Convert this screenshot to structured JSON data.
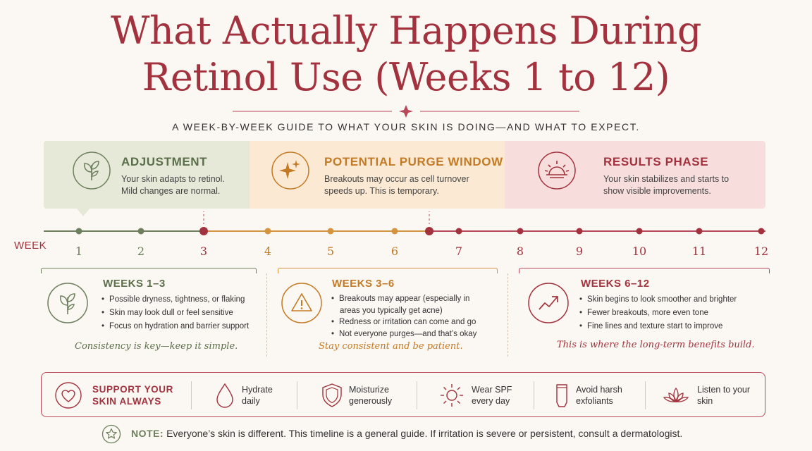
{
  "header": {
    "title_line1": "What Actually Happens During",
    "title_line2": "Retinol Use (Weeks 1 to 12)",
    "subtitle": "A WEEK-BY-WEEK GUIDE TO WHAT YOUR SKIN IS DOING—AND WHAT TO EXPECT."
  },
  "colors": {
    "accent": "#a2323d",
    "green": "#5b6e4a",
    "orange": "#c47a24",
    "rose": "#a2323d",
    "background": "#fbf7f2"
  },
  "phases": [
    {
      "title": "ADJUSTMENT",
      "description": "Your skin adapts to retinol. Mild changes are normal.",
      "icon": "sprout-icon"
    },
    {
      "title": "POTENTIAL PURGE WINDOW",
      "description": "Breakouts may occur as cell turnover speeds up. This is temporary.",
      "icon": "sparkle-icon"
    },
    {
      "title": "RESULTS PHASE",
      "description": "Your skin stabilizes and starts to show visible improvements.",
      "icon": "sunrise-icon"
    }
  ],
  "timeline": {
    "label": "WEEK",
    "weeks": [
      "1",
      "2",
      "3",
      "4",
      "5",
      "6",
      "7",
      "8",
      "9",
      "10",
      "11",
      "12"
    ]
  },
  "cards": [
    {
      "title": "WEEKS 1–3",
      "icon": "sprout-icon",
      "bullets": [
        "Possible dryness, tightness, or flaking",
        "Skin may look dull or feel sensitive",
        "Focus on hydration and barrier support"
      ],
      "quote": "Consistency is key—keep it simple."
    },
    {
      "title": "WEEKS 3–6",
      "icon": "warning-icon",
      "bullets": [
        "Breakouts may appear (especially in",
        "areas you typically get acne)",
        "Redness or irritation can come and go",
        "Not everyone purges—and that’s okay"
      ],
      "quote": "Stay consistent and be patient."
    },
    {
      "title": "WEEKS 6–12",
      "icon": "trend-up-icon",
      "bullets": [
        "Skin begins to look smoother and brighter",
        "Fewer breakouts, more even tone",
        "Fine lines and texture start to improve"
      ],
      "quote": "This is where the long-term benefits build."
    }
  ],
  "support": {
    "lead_line1": "SUPPORT YOUR",
    "lead_line2": "SKIN ALWAYS",
    "items": [
      {
        "line1": "Hydrate",
        "line2": "daily",
        "icon": "droplet-icon"
      },
      {
        "line1": "Moisturize",
        "line2": "generously",
        "icon": "shield-icon"
      },
      {
        "line1": "Wear SPF",
        "line2": "every day",
        "icon": "sun-icon"
      },
      {
        "line1": "Avoid harsh",
        "line2": "exfoliants",
        "icon": "tube-icon"
      },
      {
        "line1": "Listen to your",
        "line2": "skin",
        "icon": "lotus-icon"
      }
    ]
  },
  "note": {
    "label": "NOTE:",
    "text": "Everyone’s skin is different. This timeline is a general guide. If irritation is severe or persistent, consult a dermatologist."
  }
}
